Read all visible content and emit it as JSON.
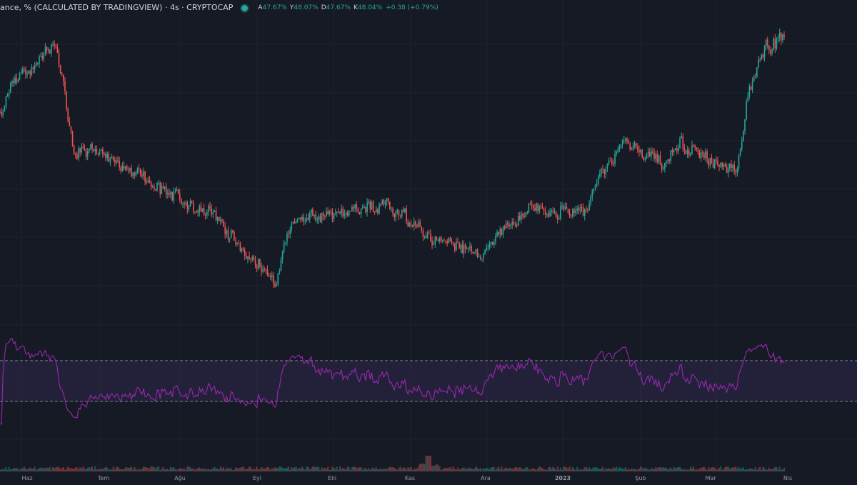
{
  "legend": {
    "symbol": "ance, % (CALCULATED BY TRADINGVIEW) · 4s · CRYPTOCAP",
    "ohlc": [
      {
        "k": "A",
        "v": "47.67%"
      },
      {
        "k": "Y",
        "v": "48.07%"
      },
      {
        "k": "D",
        "v": "47.67%"
      },
      {
        "k": "K",
        "v": "48.04%"
      }
    ],
    "change": "+0.38 (+0.79%)"
  },
  "colors": {
    "background": "#161a25",
    "grid": "#1e222d",
    "up": "#26a69a",
    "down": "#ef5350",
    "rsi_line": "#9c27b0",
    "rsi_band": "#7e57c2"
  },
  "chart_data": {
    "type": "candlestick",
    "panes": [
      "price",
      "rsi",
      "volume"
    ],
    "x_tick_labels": [
      "Haz",
      "Tem",
      "Ağu",
      "Eyl",
      "Eki",
      "Kas",
      "Ara",
      "2023",
      "Şub",
      "Mar",
      "Nis"
    ],
    "price_path": {
      "start": 46.5,
      "end": 48.04,
      "approx_anchors": [
        {
          "t": "Haz",
          "value": 46.6
        },
        {
          "t": "Haz",
          "value": 47.9
        },
        {
          "t": "Haz",
          "value": 45.9
        },
        {
          "t": "Tem",
          "value": 45.6
        },
        {
          "t": "Ağu",
          "value": 44.6
        },
        {
          "t": "Eyl",
          "value": 43.3
        },
        {
          "t": "Eyl",
          "value": 44.5
        },
        {
          "t": "Eki",
          "value": 44.9
        },
        {
          "t": "Kas",
          "value": 44.2
        },
        {
          "t": "Ara",
          "value": 43.9
        },
        {
          "t": "Ara",
          "value": 44.9
        },
        {
          "t": "2023",
          "value": 44.6
        },
        {
          "t": "2023",
          "value": 46.0
        },
        {
          "t": "Şub",
          "value": 45.6
        },
        {
          "t": "Mar",
          "value": 45.4
        },
        {
          "t": "Nis",
          "value": 48.04
        }
      ]
    },
    "rsi": {
      "upper_band": 70,
      "lower_band": 30,
      "range": [
        0,
        100
      ]
    },
    "volume_spike_near": "Kas"
  }
}
